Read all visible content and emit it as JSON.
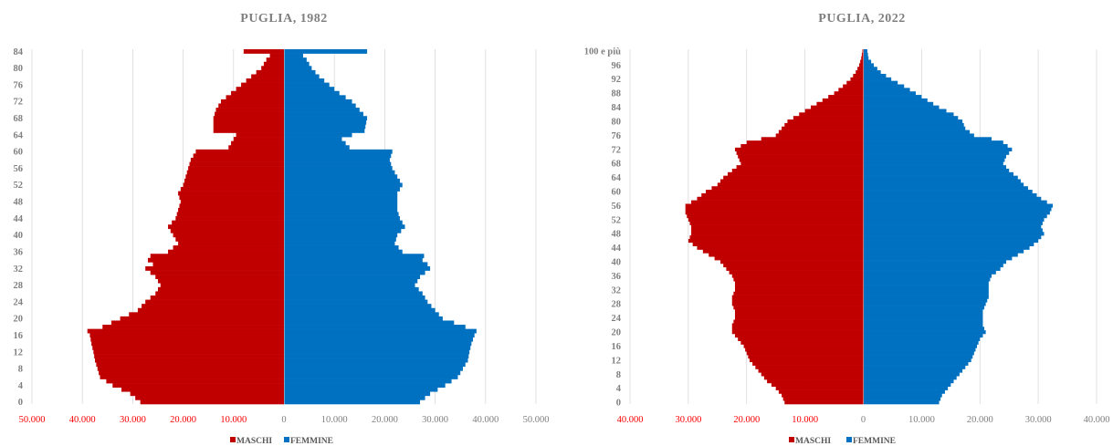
{
  "colors": {
    "male": "#C00000",
    "female": "#0070C0",
    "grid": "#d9d9d9",
    "text": "#7f7f7f",
    "negtick": "#ff0000"
  },
  "chart_data": [
    {
      "type": "bar",
      "orientation": "horizontal",
      "subtype": "population-pyramid",
      "title": "PUGLIA, 1982",
      "age_min": 0,
      "age_max": 84,
      "xlim": [
        -50000,
        50000
      ],
      "xticks": [
        -50000,
        -40000,
        -30000,
        -20000,
        -10000,
        0,
        10000,
        20000,
        30000,
        40000,
        50000
      ],
      "xtick_labels": [
        "50.000",
        "40.000",
        "30.000",
        "20.000",
        "10.000",
        "0",
        "10.000",
        "20.000",
        "30.000",
        "40.000",
        "50.000"
      ],
      "yticks": [
        0,
        4,
        8,
        12,
        16,
        20,
        24,
        28,
        32,
        36,
        40,
        44,
        48,
        52,
        56,
        60,
        64,
        68,
        72,
        76,
        80,
        84
      ],
      "ytick_labels": [
        "0",
        "4",
        "8",
        "12",
        "16",
        "20",
        "24",
        "28",
        "32",
        "36",
        "40",
        "44",
        "48",
        "52",
        "56",
        "60",
        "64",
        "68",
        "72",
        "76",
        "80",
        "84"
      ],
      "legend": [
        "MASCHI",
        "FEMMINE"
      ],
      "legend_position": "bottom",
      "male_anchors": [
        [
          0,
          28500
        ],
        [
          2,
          30500
        ],
        [
          4,
          34000
        ],
        [
          6,
          36500
        ],
        [
          8,
          37000
        ],
        [
          10,
          37500
        ],
        [
          12,
          37800
        ],
        [
          14,
          38200
        ],
        [
          16,
          38500
        ],
        [
          17,
          39000
        ],
        [
          18,
          36000
        ],
        [
          20,
          32500
        ],
        [
          22,
          29000
        ],
        [
          24,
          27500
        ],
        [
          26,
          25500
        ],
        [
          28,
          24500
        ],
        [
          30,
          25500
        ],
        [
          32,
          27500
        ],
        [
          33,
          26000
        ],
        [
          34,
          27000
        ],
        [
          35,
          26500
        ],
        [
          36,
          23000
        ],
        [
          38,
          21000
        ],
        [
          40,
          22000
        ],
        [
          42,
          23000
        ],
        [
          44,
          21500
        ],
        [
          46,
          21000
        ],
        [
          48,
          20500
        ],
        [
          50,
          21000
        ],
        [
          52,
          20000
        ],
        [
          54,
          19500
        ],
        [
          56,
          19000
        ],
        [
          58,
          18500
        ],
        [
          59,
          18000
        ],
        [
          60,
          17500
        ],
        [
          61,
          11000
        ],
        [
          63,
          10000
        ],
        [
          64,
          9500
        ],
        [
          65,
          14000
        ],
        [
          68,
          14000
        ],
        [
          70,
          13500
        ],
        [
          72,
          12500
        ],
        [
          74,
          10500
        ],
        [
          76,
          8500
        ],
        [
          78,
          6500
        ],
        [
          80,
          4500
        ],
        [
          82,
          3500
        ],
        [
          83,
          2800
        ],
        [
          84,
          8000
        ]
      ],
      "female_anchors": [
        [
          0,
          27000
        ],
        [
          2,
          29000
        ],
        [
          4,
          32000
        ],
        [
          6,
          34500
        ],
        [
          8,
          35500
        ],
        [
          10,
          36500
        ],
        [
          12,
          36800
        ],
        [
          14,
          37200
        ],
        [
          16,
          37800
        ],
        [
          17,
          38200
        ],
        [
          18,
          36000
        ],
        [
          20,
          31500
        ],
        [
          22,
          30000
        ],
        [
          24,
          28500
        ],
        [
          26,
          27500
        ],
        [
          28,
          26000
        ],
        [
          30,
          27000
        ],
        [
          32,
          29000
        ],
        [
          33,
          28500
        ],
        [
          34,
          27500
        ],
        [
          35,
          27800
        ],
        [
          36,
          23500
        ],
        [
          38,
          22000
        ],
        [
          40,
          22500
        ],
        [
          42,
          24000
        ],
        [
          44,
          23000
        ],
        [
          46,
          22500
        ],
        [
          48,
          22500
        ],
        [
          50,
          22500
        ],
        [
          52,
          23500
        ],
        [
          54,
          22500
        ],
        [
          56,
          21500
        ],
        [
          58,
          21000
        ],
        [
          60,
          21500
        ],
        [
          61,
          13000
        ],
        [
          63,
          11500
        ],
        [
          64,
          13500
        ],
        [
          65,
          16000
        ],
        [
          68,
          16500
        ],
        [
          70,
          15000
        ],
        [
          72,
          13500
        ],
        [
          74,
          11000
        ],
        [
          76,
          9000
        ],
        [
          78,
          7000
        ],
        [
          80,
          5500
        ],
        [
          82,
          4500
        ],
        [
          83,
          3800
        ],
        [
          84,
          16500
        ]
      ]
    },
    {
      "type": "bar",
      "orientation": "horizontal",
      "subtype": "population-pyramid",
      "title": "PUGLIA, 2022",
      "age_min": 0,
      "age_max": 100,
      "xlim": [
        -40000,
        40000
      ],
      "xticks": [
        -40000,
        -30000,
        -20000,
        -10000,
        0,
        10000,
        20000,
        30000,
        40000
      ],
      "xtick_labels": [
        "40.000",
        "30.000",
        "20.000",
        "10.000",
        "0",
        "10.000",
        "20.000",
        "30.000",
        "40.000"
      ],
      "yticks": [
        0,
        4,
        8,
        12,
        16,
        20,
        24,
        28,
        32,
        36,
        40,
        44,
        48,
        52,
        56,
        60,
        64,
        68,
        72,
        76,
        80,
        84,
        88,
        92,
        96,
        100
      ],
      "ytick_labels": [
        "0",
        "4",
        "8",
        "12",
        "16",
        "20",
        "24",
        "28",
        "32",
        "36",
        "40",
        "44",
        "48",
        "52",
        "56",
        "60",
        "64",
        "68",
        "72",
        "76",
        "80",
        "84",
        "88",
        "92",
        "96",
        "100 e più"
      ],
      "legend": [
        "MASCHI",
        "FEMMINE"
      ],
      "legend_position": "bottom",
      "male_anchors": [
        [
          0,
          13500
        ],
        [
          2,
          14000
        ],
        [
          4,
          15000
        ],
        [
          6,
          16500
        ],
        [
          8,
          17500
        ],
        [
          10,
          18500
        ],
        [
          12,
          19500
        ],
        [
          14,
          20000
        ],
        [
          16,
          20500
        ],
        [
          18,
          21500
        ],
        [
          20,
          22500
        ],
        [
          22,
          22500
        ],
        [
          24,
          22000
        ],
        [
          26,
          22000
        ],
        [
          28,
          22500
        ],
        [
          30,
          22500
        ],
        [
          32,
          22000
        ],
        [
          34,
          22000
        ],
        [
          36,
          22500
        ],
        [
          38,
          23500
        ],
        [
          40,
          24500
        ],
        [
          42,
          26500
        ],
        [
          44,
          28500
        ],
        [
          46,
          30000
        ],
        [
          48,
          29500
        ],
        [
          50,
          29500
        ],
        [
          52,
          30000
        ],
        [
          54,
          30500
        ],
        [
          56,
          30500
        ],
        [
          58,
          28500
        ],
        [
          60,
          27000
        ],
        [
          62,
          25000
        ],
        [
          64,
          24000
        ],
        [
          66,
          22500
        ],
        [
          68,
          21000
        ],
        [
          70,
          21500
        ],
        [
          72,
          22000
        ],
        [
          74,
          20000
        ],
        [
          75,
          17500
        ],
        [
          76,
          15000
        ],
        [
          78,
          14000
        ],
        [
          80,
          13000
        ],
        [
          82,
          11000
        ],
        [
          84,
          9000
        ],
        [
          86,
          7000
        ],
        [
          88,
          5000
        ],
        [
          90,
          3500
        ],
        [
          92,
          2200
        ],
        [
          94,
          1300
        ],
        [
          96,
          700
        ],
        [
          98,
          350
        ],
        [
          100,
          150
        ]
      ],
      "female_anchors": [
        [
          0,
          13000
        ],
        [
          2,
          13500
        ],
        [
          4,
          14500
        ],
        [
          6,
          15500
        ],
        [
          8,
          16500
        ],
        [
          10,
          17500
        ],
        [
          12,
          18500
        ],
        [
          14,
          19000
        ],
        [
          16,
          19500
        ],
        [
          18,
          20000
        ],
        [
          20,
          21000
        ],
        [
          22,
          20500
        ],
        [
          24,
          20500
        ],
        [
          26,
          20500
        ],
        [
          28,
          21000
        ],
        [
          30,
          21500
        ],
        [
          32,
          21500
        ],
        [
          34,
          21500
        ],
        [
          36,
          22000
        ],
        [
          38,
          23500
        ],
        [
          40,
          24500
        ],
        [
          42,
          26500
        ],
        [
          44,
          28500
        ],
        [
          46,
          30000
        ],
        [
          48,
          31000
        ],
        [
          50,
          30500
        ],
        [
          52,
          31000
        ],
        [
          54,
          32000
        ],
        [
          56,
          32500
        ],
        [
          58,
          30500
        ],
        [
          60,
          29000
        ],
        [
          62,
          27500
        ],
        [
          64,
          26500
        ],
        [
          66,
          25000
        ],
        [
          68,
          24000
        ],
        [
          70,
          24500
        ],
        [
          72,
          25500
        ],
        [
          74,
          24000
        ],
        [
          75,
          22000
        ],
        [
          76,
          19000
        ],
        [
          78,
          17500
        ],
        [
          80,
          17000
        ],
        [
          82,
          15500
        ],
        [
          84,
          13000
        ],
        [
          86,
          11000
        ],
        [
          88,
          9000
        ],
        [
          90,
          7000
        ],
        [
          92,
          4800
        ],
        [
          94,
          3000
        ],
        [
          96,
          1800
        ],
        [
          98,
          900
        ],
        [
          100,
          700
        ]
      ]
    }
  ]
}
